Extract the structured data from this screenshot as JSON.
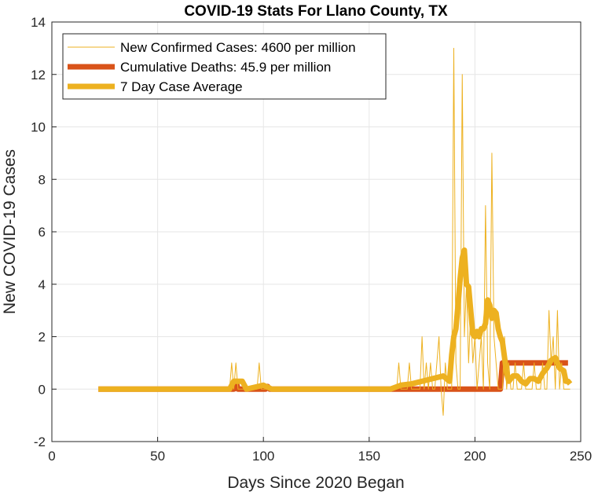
{
  "chart_data": {
    "type": "line",
    "title": "COVID-19 Stats For Llano County, TX",
    "xlabel": "Days Since 2020 Began",
    "ylabel": "New COVID-19 Cases",
    "xlim": [
      0,
      250
    ],
    "ylim": [
      -2,
      14
    ],
    "xticks": [
      "0",
      "50",
      "100",
      "150",
      "200",
      "250"
    ],
    "yticks": [
      "-2",
      "0",
      "2",
      "4",
      "6",
      "8",
      "10",
      "12",
      "14"
    ],
    "grid": true,
    "legend_position": "top-left",
    "colors": {
      "new_cases": "#EDB120",
      "deaths": "#D95319",
      "avg": "#EDB120",
      "grid": "#e6e6e6",
      "axis": "#262626"
    },
    "series": [
      {
        "name": "New Confirmed Cases: 4600 per million",
        "x": [
          22,
          84,
          85,
          86,
          87,
          88,
          89,
          97,
          98,
          99,
          100,
          163,
          164,
          165,
          166,
          167,
          168,
          169,
          170,
          171,
          172,
          173,
          174,
          175,
          176,
          177,
          178,
          179,
          180,
          181,
          182,
          183,
          184,
          185,
          186,
          187,
          188,
          189,
          190,
          191,
          192,
          193,
          194,
          195,
          196,
          197,
          198,
          199,
          200,
          201,
          202,
          203,
          204,
          205,
          206,
          207,
          208,
          209,
          210,
          211,
          212,
          213,
          214,
          215,
          216,
          217,
          218,
          219,
          220,
          221,
          222,
          223,
          224,
          225,
          226,
          227,
          228,
          229,
          230,
          231,
          232,
          233,
          234,
          235,
          236,
          237,
          238,
          239,
          240,
          241,
          242,
          243,
          244,
          245
        ],
        "y": [
          0,
          0,
          1,
          0,
          1,
          0,
          0,
          0,
          1,
          0,
          0,
          0,
          1,
          0,
          0,
          0,
          0,
          1,
          0,
          0,
          0,
          0,
          0,
          2,
          0,
          1,
          0,
          1,
          0,
          0,
          1,
          2,
          0,
          -1,
          1,
          0,
          0,
          0,
          13,
          1,
          0,
          0,
          12,
          2,
          4,
          1,
          3,
          1,
          2,
          0,
          1,
          2,
          0,
          7,
          1,
          0,
          9,
          2,
          1,
          0,
          0,
          0,
          2,
          0,
          1,
          0,
          0,
          1,
          0,
          0,
          0,
          1,
          0,
          0,
          0,
          0,
          1,
          0,
          0,
          0,
          1,
          0,
          0,
          3,
          1,
          2,
          0,
          3,
          0,
          1,
          0,
          0,
          0,
          0
        ]
      },
      {
        "name": "Cumulative Deaths: 45.9 per million",
        "x": [
          22,
          86,
          87,
          88,
          89,
          101,
          102,
          103,
          104,
          212,
          213,
          244
        ],
        "y": [
          0,
          0,
          0.3,
          0,
          0,
          0,
          0.1,
          0,
          0,
          0,
          1,
          1
        ]
      },
      {
        "name": "7 Day Case Average",
        "x": [
          22,
          84,
          86,
          90,
          92,
          100,
          104,
          160,
          165,
          170,
          175,
          180,
          185,
          188,
          189,
          190,
          191,
          192,
          193,
          194,
          195,
          196,
          197,
          198,
          199,
          200,
          201,
          202,
          203,
          204,
          205,
          206,
          207,
          208,
          209,
          210,
          211,
          212,
          213,
          214,
          215,
          216,
          218,
          220,
          222,
          224,
          226,
          228,
          230,
          232,
          234,
          236,
          238,
          240,
          242,
          243,
          244,
          245
        ],
        "y": [
          0,
          0,
          0.3,
          0.3,
          0,
          0.15,
          0,
          0,
          0.15,
          0.2,
          0.3,
          0.4,
          0.5,
          0.3,
          1.3,
          2.0,
          2.3,
          3.2,
          4.2,
          5.0,
          5.3,
          4.0,
          3.9,
          3.0,
          2.1,
          2.0,
          2.2,
          2.0,
          2.3,
          2.3,
          2.5,
          3.4,
          3.2,
          2.7,
          3.0,
          2.9,
          2.3,
          2.0,
          1.8,
          1.2,
          0.6,
          0.3,
          0.5,
          0.5,
          0.3,
          0.2,
          0.4,
          0.4,
          0.3,
          0.6,
          0.8,
          1.1,
          1.2,
          0.8,
          0.7,
          0.3,
          0.3,
          0.2
        ]
      }
    ]
  }
}
